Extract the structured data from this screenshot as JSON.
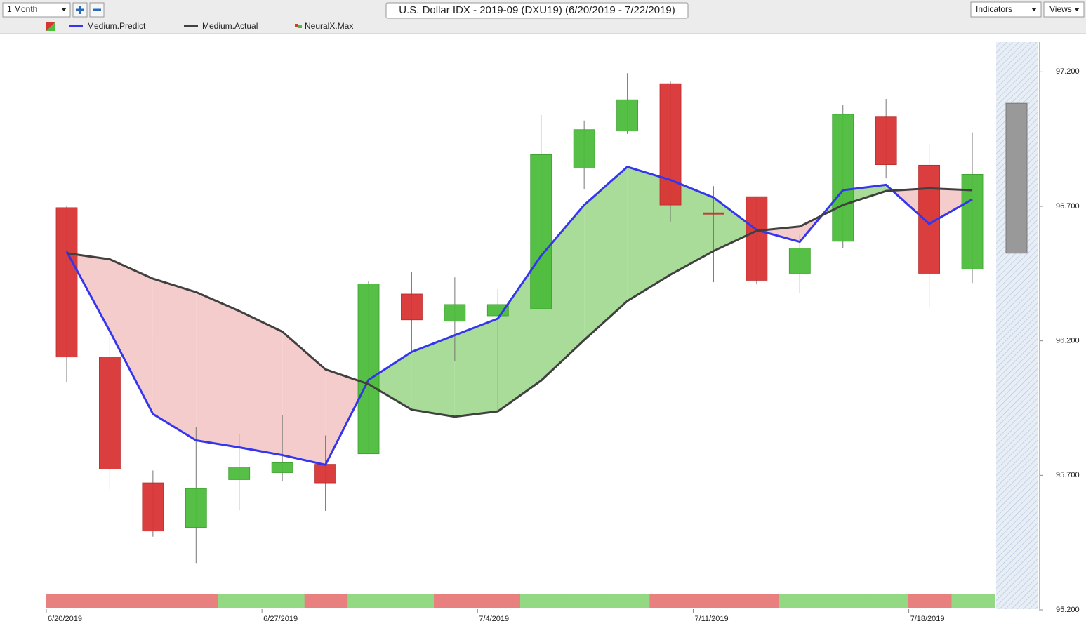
{
  "header": {
    "period": "1 Month",
    "indicators": "Indicators",
    "views": "Views"
  },
  "chart_data": {
    "type": "candlestick",
    "title": "U.S. Dollar IDX - 2019-09 (DXU19) (6/20/2019 - 7/22/2019)",
    "categories": [
      "6/20/2019",
      null,
      null,
      null,
      null,
      "6/27/2019",
      null,
      null,
      null,
      null,
      "7/4/2019",
      null,
      null,
      null,
      null,
      "7/11/2019",
      null,
      null,
      null,
      null,
      "7/18/2019",
      null
    ],
    "candles": {
      "open": [
        96.695,
        96.14,
        95.672,
        95.506,
        95.684,
        95.71,
        95.741,
        95.78,
        96.374,
        96.273,
        96.293,
        96.319,
        96.842,
        96.98,
        97.156,
        96.676,
        96.736,
        96.451,
        96.57,
        97.032,
        96.853,
        96.467
      ],
      "high": [
        96.703,
        96.24,
        95.718,
        95.879,
        95.853,
        95.923,
        95.848,
        96.423,
        96.456,
        96.436,
        96.392,
        97.039,
        97.019,
        97.195,
        97.164,
        96.775,
        96.736,
        96.594,
        97.076,
        97.099,
        96.931,
        96.975
      ],
      "low": [
        96.047,
        95.648,
        95.472,
        95.374,
        95.57,
        95.677,
        95.568,
        95.78,
        96.159,
        96.125,
        95.938,
        96.319,
        96.765,
        96.969,
        96.643,
        96.418,
        96.41,
        96.379,
        96.545,
        96.804,
        96.324,
        96.415
      ],
      "close": [
        96.14,
        95.723,
        95.493,
        95.651,
        95.731,
        95.747,
        95.672,
        96.412,
        96.278,
        96.335,
        96.335,
        96.892,
        96.985,
        97.096,
        96.705,
        96.672,
        96.425,
        96.545,
        97.042,
        96.855,
        96.451,
        96.819
      ],
      "up_color": "#4cbc3c",
      "down_color": "#d83434"
    },
    "series": [
      {
        "name": "Medium.Predict",
        "color": "#3535ee",
        "values": [
          96.532,
          96.236,
          95.928,
          95.83,
          95.804,
          95.775,
          95.739,
          96.055,
          96.159,
          96.221,
          96.283,
          96.516,
          96.705,
          96.847,
          96.798,
          96.733,
          96.612,
          96.568,
          96.76,
          96.78,
          96.635,
          96.726
        ]
      },
      {
        "name": "Medium.Actual",
        "color": "#404040",
        "values": [
          96.526,
          96.503,
          96.431,
          96.381,
          96.311,
          96.234,
          96.094,
          96.039,
          95.944,
          95.918,
          95.938,
          96.052,
          96.203,
          96.348,
          96.446,
          96.534,
          96.609,
          96.625,
          96.705,
          96.757,
          96.767,
          96.76
        ]
      },
      {
        "name": "NeuralX.Max",
        "colors": [
          "#e88080",
          "#e88080",
          "#e88080",
          "#e88080",
          "#93d882",
          "#93d882",
          "#e88080",
          "#93d882",
          "#93d882",
          "#e88080",
          "#e88080",
          "#93d882",
          "#93d882",
          "#93d882",
          "#e88080",
          "#e88080",
          "#e88080",
          "#93d882",
          "#93d882",
          "#93d882",
          "#e88080",
          "#93d882"
        ]
      }
    ],
    "fill_up_color": "#a8dc98",
    "fill_down_color": "#f5cccc",
    "projection_range": [
      96.526,
      97.083
    ],
    "ylim": [
      95.2,
      97.3
    ],
    "yticks": [
      {
        "value": 95.2,
        "label": "95.200"
      },
      {
        "value": 95.7,
        "label": "95.700"
      },
      {
        "value": 96.2,
        "label": "96.200"
      },
      {
        "value": 96.7,
        "label": "96.700"
      },
      {
        "value": 97.2,
        "label": "97.200"
      }
    ]
  }
}
